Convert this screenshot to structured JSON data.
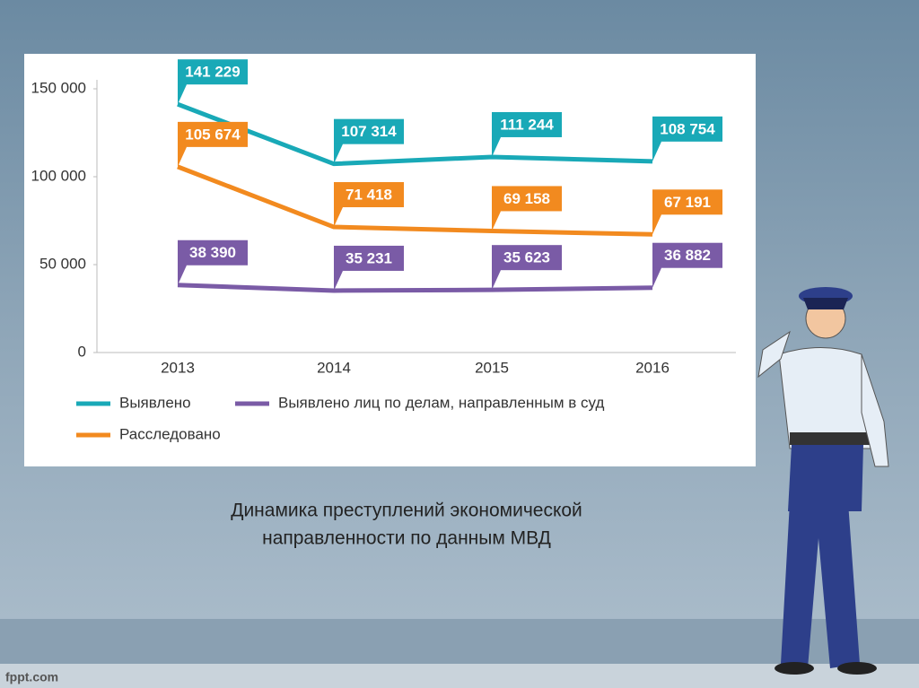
{
  "chart_data": {
    "type": "line",
    "categories": [
      "2013",
      "2014",
      "2015",
      "2016"
    ],
    "series": [
      {
        "name": "Выявлено",
        "color": "#19a9b7",
        "values": [
          141229,
          107314,
          111244,
          108754
        ],
        "value_labels": [
          "141 229",
          "107 314",
          "111 244",
          "108 754"
        ]
      },
      {
        "name": "Расследовано",
        "color": "#f28a1f",
        "values": [
          105674,
          71418,
          69158,
          67191
        ],
        "value_labels": [
          "105 674",
          "71 418",
          "69 158",
          "67 191"
        ]
      },
      {
        "name": "Выявлено лиц по делам, направленным в суд",
        "color": "#7a5ba6",
        "values": [
          38390,
          35231,
          35623,
          36882
        ],
        "value_labels": [
          "38 390",
          "35 231",
          "35 623",
          "36 882"
        ]
      }
    ],
    "ylim": [
      0,
      150000
    ],
    "yticks": [
      0,
      {
        "value": 50000,
        "label": "50 000"
      },
      {
        "value": 100000,
        "label": "100 000"
      },
      {
        "value": 150000,
        "label": "150 000"
      }
    ],
    "caption": [
      "Динамика преступлений экономической",
      "направленности по данным МВД"
    ],
    "watermark": "fppt.com"
  }
}
